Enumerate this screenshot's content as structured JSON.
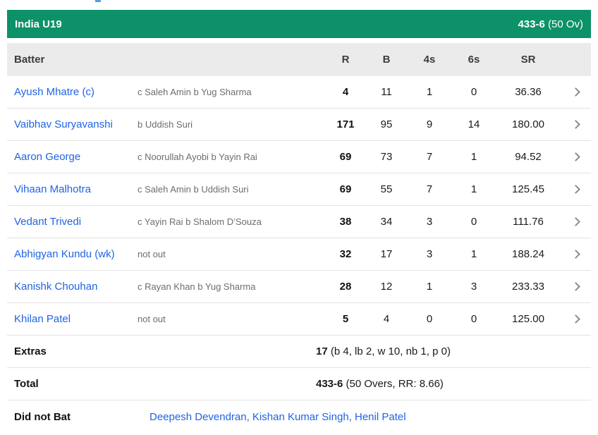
{
  "header": {
    "team": "India U19",
    "score": "433-6",
    "overs": "(50 Ov)",
    "bg_color": "#0d9168"
  },
  "table": {
    "columns": [
      "Batter",
      "R",
      "B",
      "4s",
      "6s",
      "SR"
    ],
    "rows": [
      {
        "name": "Ayush Mhatre (c)",
        "dismissal": "c Saleh Amin b Yug Sharma",
        "r": "4",
        "b": "11",
        "fours": "1",
        "sixes": "0",
        "sr": "36.36"
      },
      {
        "name": "Vaibhav Suryavanshi",
        "dismissal": "b Uddish Suri",
        "r": "171",
        "b": "95",
        "fours": "9",
        "sixes": "14",
        "sr": "180.00"
      },
      {
        "name": "Aaron George",
        "dismissal": "c Noorullah Ayobi b Yayin Rai",
        "r": "69",
        "b": "73",
        "fours": "7",
        "sixes": "1",
        "sr": "94.52"
      },
      {
        "name": "Vihaan Malhotra",
        "dismissal": "c Saleh Amin b Uddish Suri",
        "r": "69",
        "b": "55",
        "fours": "7",
        "sixes": "1",
        "sr": "125.45"
      },
      {
        "name": "Vedant Trivedi",
        "dismissal": "c Yayin Rai b Shalom D’Souza",
        "r": "38",
        "b": "34",
        "fours": "3",
        "sixes": "0",
        "sr": "111.76"
      },
      {
        "name": "Abhigyan Kundu (wk)",
        "dismissal": "not out",
        "r": "32",
        "b": "17",
        "fours": "3",
        "sixes": "1",
        "sr": "188.24"
      },
      {
        "name": "Kanishk Chouhan",
        "dismissal": "c Rayan Khan b Yug Sharma",
        "r": "28",
        "b": "12",
        "fours": "1",
        "sixes": "3",
        "sr": "233.33"
      },
      {
        "name": "Khilan Patel",
        "dismissal": "not out",
        "r": "5",
        "b": "4",
        "fours": "0",
        "sixes": "0",
        "sr": "125.00"
      }
    ]
  },
  "summary": {
    "extras_label": "Extras",
    "extras_value": "17",
    "extras_detail": " (b 4, lb 2, w 10, nb 1, p 0)",
    "total_label": "Total",
    "total_value": "433-6",
    "total_detail": " (50 Overs, RR: 8.66)"
  },
  "did_not_bat": {
    "label": "Did not Bat",
    "players": "Deepesh Devendran, Kishan Kumar Singh, Henil Patel"
  }
}
